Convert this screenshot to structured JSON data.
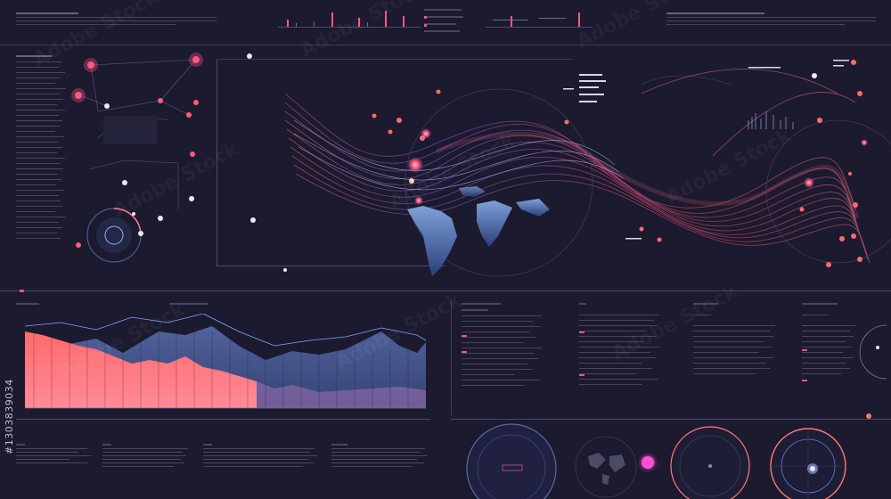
{
  "watermark": {
    "text": "Adobe Stock",
    "side_id": "#1303839034"
  },
  "colors": {
    "background": "#1b1a2e",
    "accent_pink": "#ff4f8b",
    "accent_orange": "#ff7a59",
    "accent_blue": "#6a8cff"
  },
  "icons": [
    "node-dot-icon",
    "radar-icon",
    "globe-icon"
  ]
}
